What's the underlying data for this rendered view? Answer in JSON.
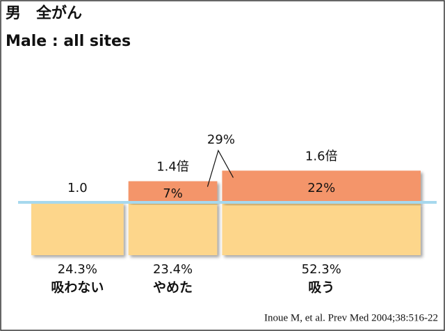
{
  "chart_data": {
    "type": "mekko",
    "title": "男　全がん",
    "subtitle": "Male : all sites",
    "categories": [
      "吸わない",
      "やめた",
      "吸う"
    ],
    "widths": [
      24.3,
      23.4,
      52.3
    ],
    "width_labels": [
      "24.3%",
      "23.4%",
      "52.3%"
    ],
    "values": [
      1.0,
      1.4,
      1.6
    ],
    "value_labels": [
      "1.0",
      "1.4倍",
      "1.6倍"
    ],
    "excess": [
      null,
      7,
      22
    ],
    "excess_labels": [
      null,
      "7%",
      "22%"
    ],
    "annotation": {
      "value": 29,
      "label": "29%"
    },
    "colors": {
      "base": "#fdd68b",
      "excess": "#f4956a",
      "reference": "#a6d8ee"
    },
    "source": "Inoue M, et al. Prev Med 2004;38:516-22"
  }
}
